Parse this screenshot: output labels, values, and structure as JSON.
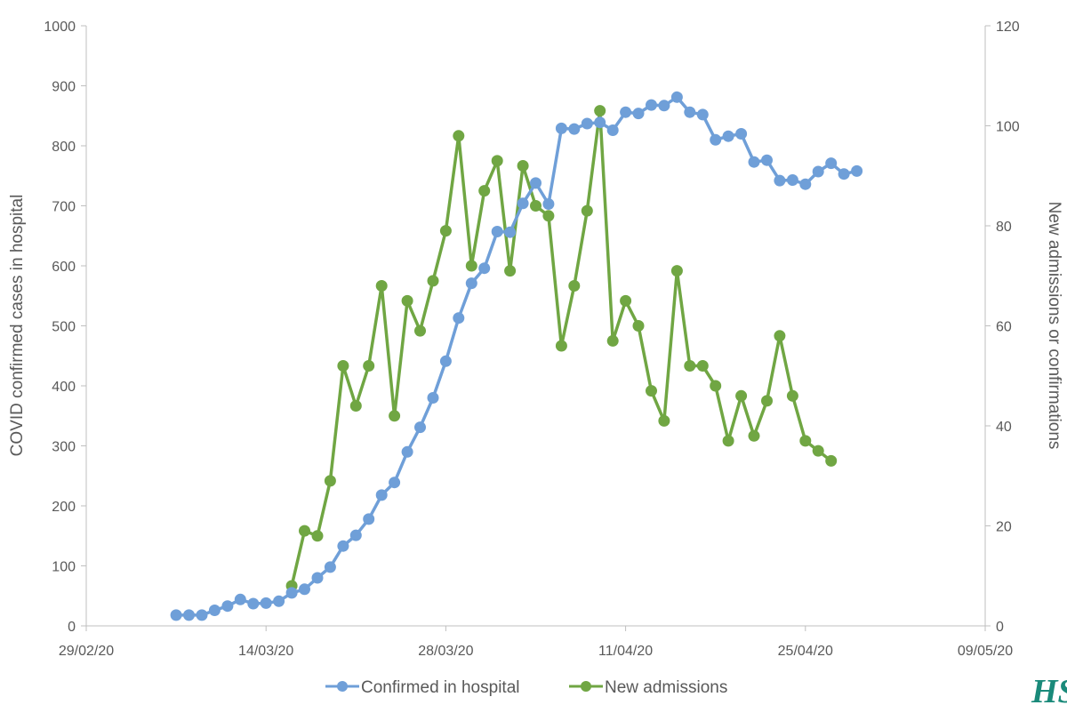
{
  "chart_data": {
    "type": "line",
    "start_date": "2020-02-29",
    "x_axis": {
      "min_day": 0,
      "max_day": 70,
      "tick_step_days": 14,
      "tick_labels": [
        "29/02/20",
        "14/03/20",
        "28/03/20",
        "11/04/20",
        "25/04/20",
        "09/05/20"
      ]
    },
    "y_left": {
      "label": "COVID confirmed cases in hospital",
      "min": 0,
      "max": 1000,
      "step": 100,
      "tick_labels": [
        "0",
        "100",
        "200",
        "300",
        "400",
        "500",
        "600",
        "700",
        "800",
        "900",
        "1000"
      ]
    },
    "y_right": {
      "label": "New admissions or confirmations",
      "min": 0,
      "max": 120,
      "step": 20,
      "tick_labels": [
        "0",
        "20",
        "40",
        "60",
        "80",
        "100",
        "120"
      ]
    },
    "grid": false,
    "legend_position": "bottom",
    "series": [
      {
        "name": "Confirmed in hospital",
        "color": "#6f9fd8",
        "axis": "left",
        "start_date": "2020-03-07",
        "values": [
          18,
          18,
          18,
          26,
          33,
          44,
          37,
          38,
          41,
          55,
          61,
          80,
          98,
          133,
          151,
          178,
          218,
          239,
          290,
          331,
          380,
          441,
          513,
          571,
          596,
          657,
          656,
          704,
          738,
          703,
          829,
          828,
          837,
          839,
          826,
          856,
          854,
          868,
          867,
          881,
          856,
          852,
          810,
          816,
          820,
          773,
          776,
          742,
          743,
          736,
          757,
          771,
          753,
          758
        ]
      },
      {
        "name": "New admissions",
        "color": "#70a643",
        "axis": "right",
        "start_date": "2020-03-16",
        "values": [
          8,
          19,
          18,
          29,
          52,
          44,
          52,
          68,
          42,
          65,
          59,
          69,
          79,
          98,
          72,
          87,
          93,
          71,
          92,
          84,
          82,
          56,
          68,
          83,
          103,
          57,
          65,
          60,
          47,
          41,
          71,
          52,
          52,
          48,
          37,
          46,
          38,
          45,
          58,
          46,
          37,
          35,
          33
        ]
      }
    ]
  },
  "branding": {
    "logo_text": "HSE"
  }
}
